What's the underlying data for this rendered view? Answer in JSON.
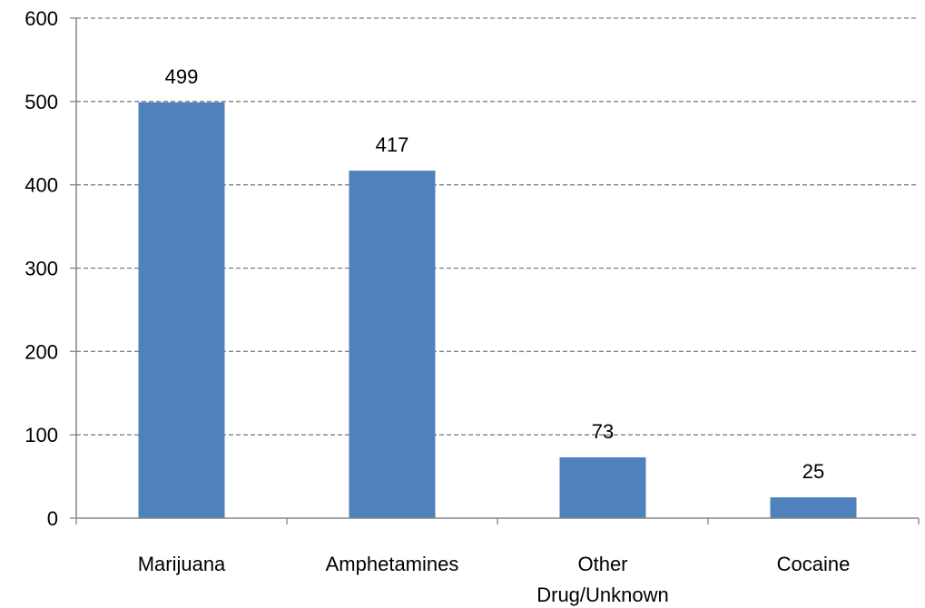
{
  "chart_data": {
    "type": "bar",
    "title": "",
    "xlabel": "",
    "ylabel": "",
    "categories": [
      [
        "Marijuana"
      ],
      [
        "Amphetamines"
      ],
      [
        "Other",
        "Drug/Unknown"
      ],
      [
        "Cocaine"
      ]
    ],
    "values": [
      499,
      417,
      73,
      25
    ],
    "data_labels": [
      "499",
      "417",
      "73",
      "25"
    ],
    "ylim": [
      0,
      600
    ],
    "yticks": [
      0,
      100,
      200,
      300,
      400,
      500,
      600
    ],
    "grid": true,
    "legend": "none",
    "colors": {
      "bar": "#4f81bd",
      "grid": "#7f7f7f",
      "axis": "#868686"
    }
  }
}
